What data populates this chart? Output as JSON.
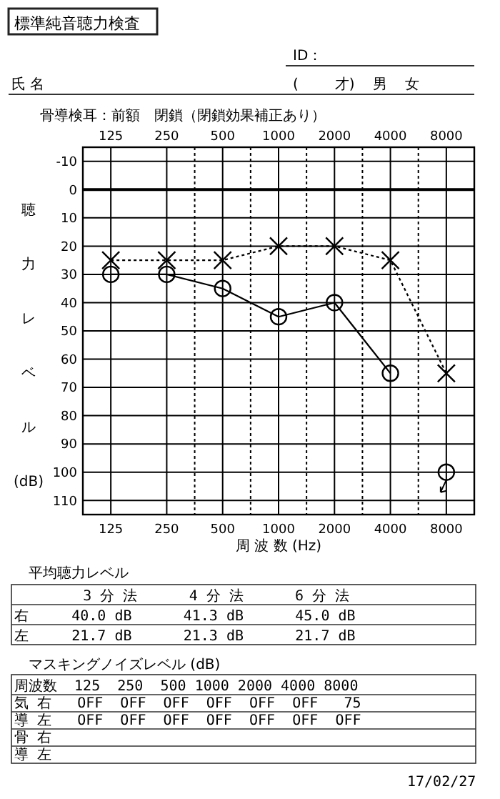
{
  "chart_data": {
    "type": "line",
    "title": "標準純音聴力検査",
    "xlabel": "周 波 数 (Hz)",
    "ylabel": "聴力レベル(dB)",
    "categories": [
      "125",
      "250",
      "500",
      "1000",
      "2000",
      "4000",
      "8000"
    ],
    "series": [
      {
        "color": "#000000",
        "marker": "circle",
        "line_style": "solid",
        "values": [
          30,
          30,
          35,
          45,
          40,
          65,
          null
        ]
      },
      {
        "type": "scatter",
        "color": "#000000",
        "marker": "circle",
        "values": [
          null,
          null,
          null,
          null,
          null,
          null,
          100
        ]
      },
      {
        "color": "#000000",
        "marker": "cross",
        "line_style": "dotted",
        "values": [
          25,
          25,
          25,
          20,
          20,
          25,
          65
        ]
      }
    ],
    "ylim": [
      115,
      -15
    ],
    "yticks": [
      -10,
      0,
      10,
      20,
      30,
      40,
      50,
      60,
      70,
      80,
      90,
      100,
      110
    ],
    "grid": true,
    "annotations": [
      "ID：",
      "氏 名",
      "(        才)    男    女",
      "骨導検耳：前額　閉鎖（閉鎖効果補正あり）",
      "平均聴力レベル",
      "        3 分 法      4 分 法      6 分 法",
      "右     40.0 dB      41.3 dB      45.0 dB",
      "左     21.7 dB      21.3 dB      21.7 dB",
      "マスキングノイズレベル (dB)",
      "周波数  125  250  500 1000 2000 4000 8000",
      "気 右   OFF  OFF  OFF  OFF  OFF  OFF   75",
      "導 左   OFF  OFF  OFF  OFF  OFF  OFF  OFF",
      "骨 右",
      "導 左",
      "17/02/27"
    ]
  }
}
